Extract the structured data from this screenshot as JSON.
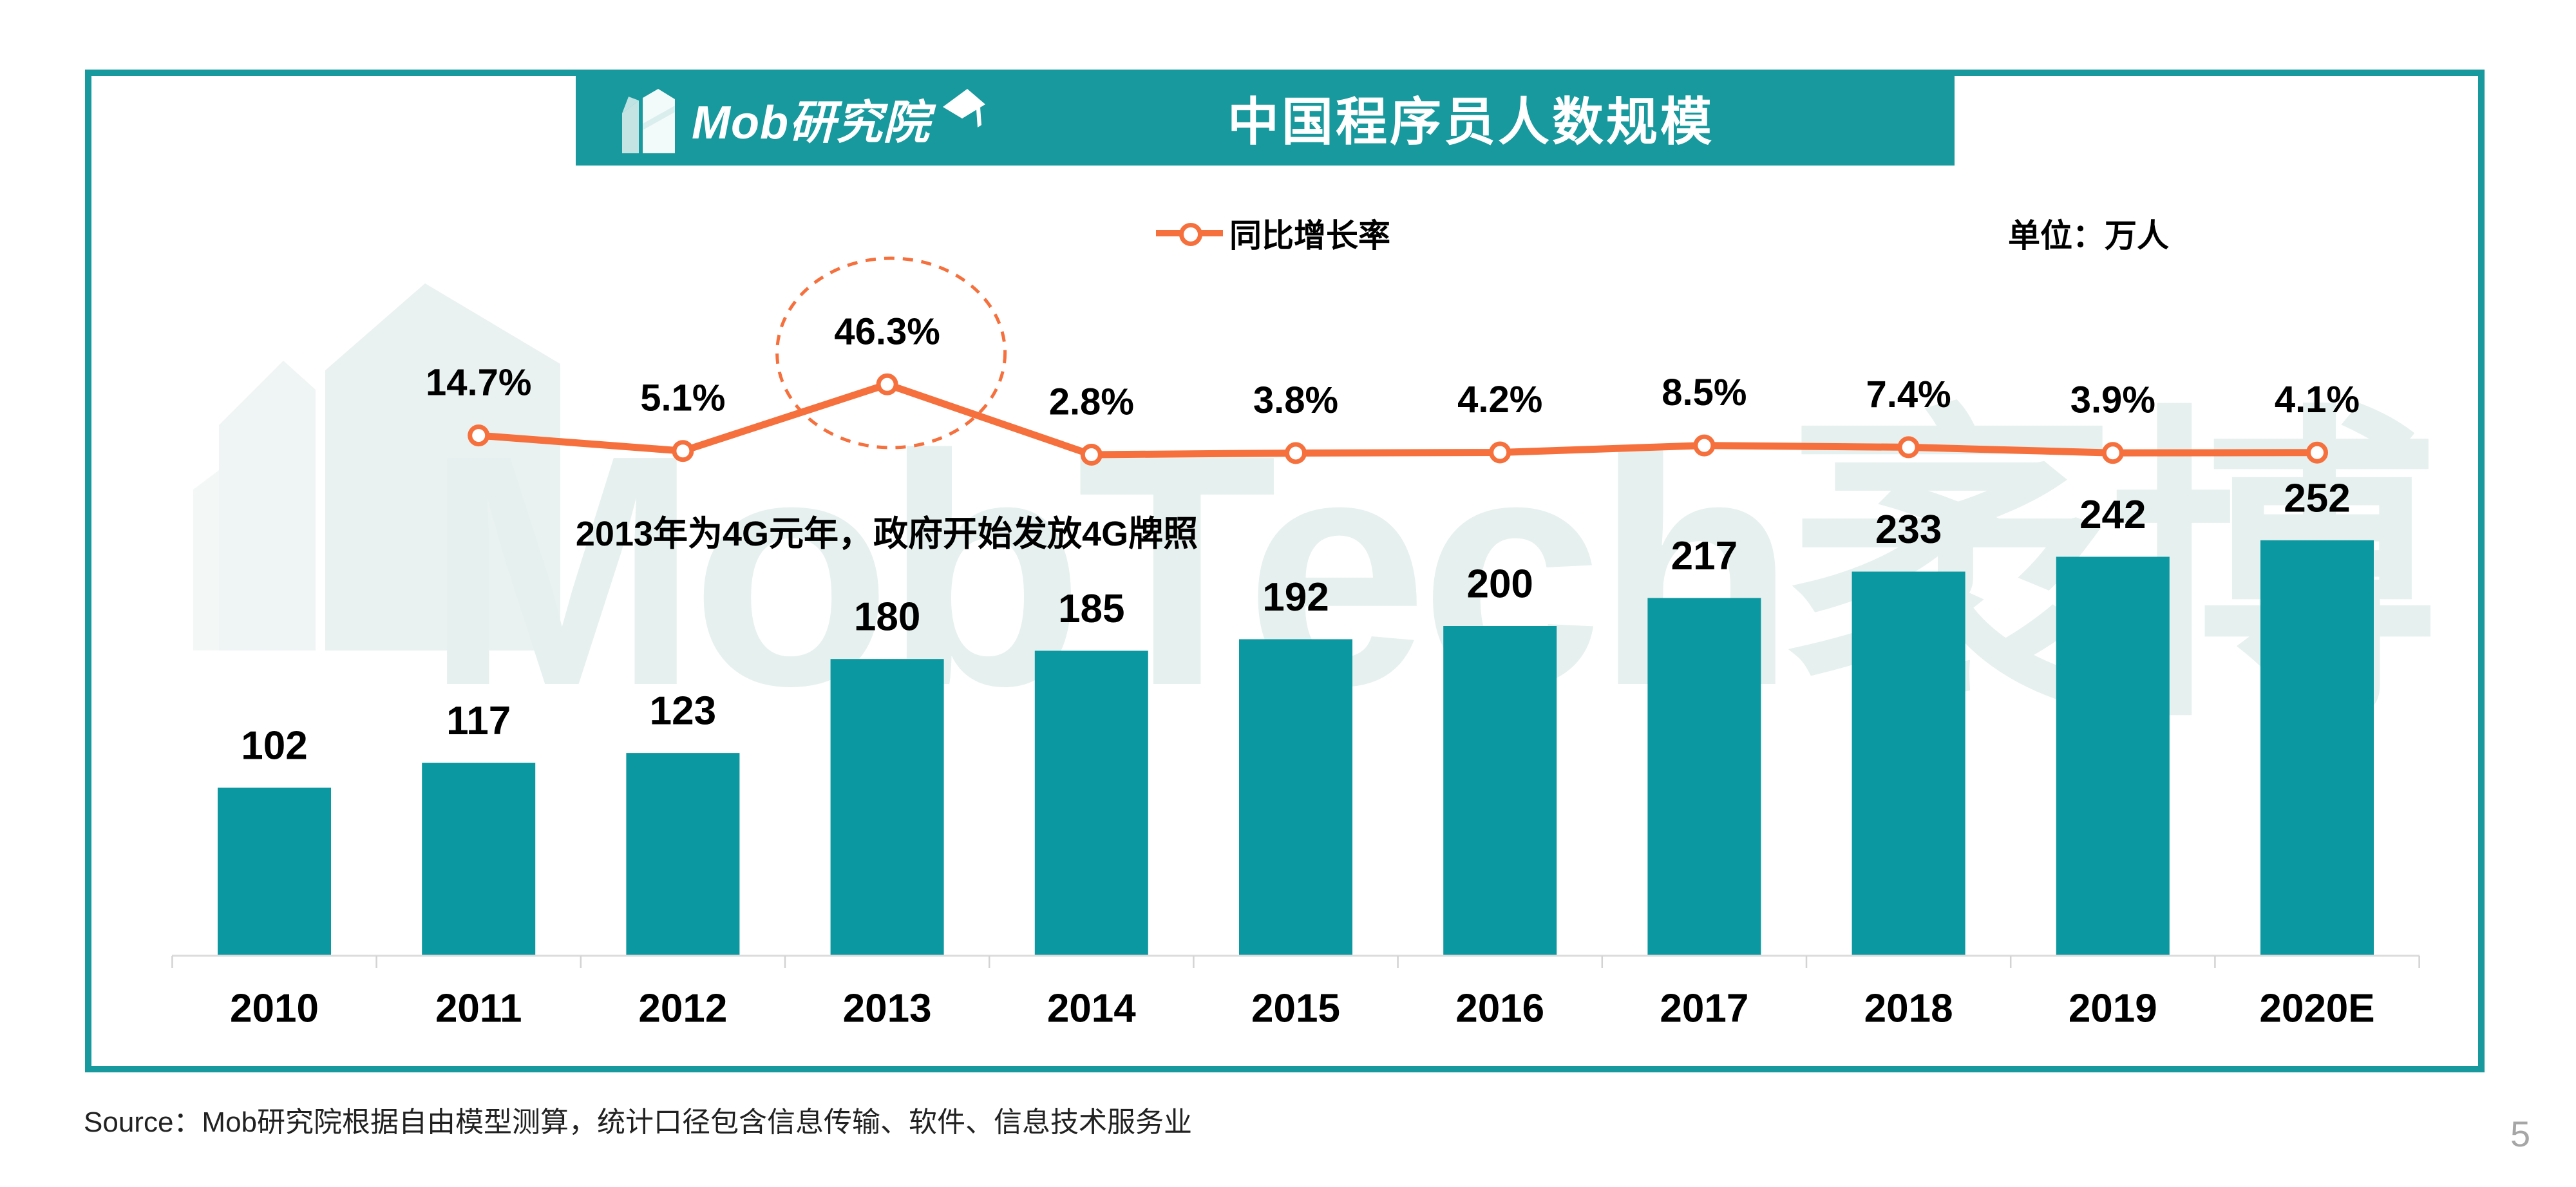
{
  "header": {
    "logo_text": "Mob研究院",
    "title": "中国程序员人数规模"
  },
  "legend": {
    "series_label": "同比增长率",
    "unit_label": "单位：万人"
  },
  "annotation": "2013年为4G元年，政府开始发放4G牌照",
  "source": "Source：Mob研究院根据自由模型测算，统计口径包含信息传输、软件、信息技术服务业",
  "page_number": "5",
  "watermark": {
    "text": "MobTech袤博"
  },
  "icons": {
    "logo_building": "building-icon",
    "logo_cap": "graduation-cap-icon",
    "legend_marker": "line-circle-marker-icon"
  },
  "colors": {
    "teal_bar": "#0C98A0",
    "teal_band": "#17999D",
    "orange": "#F5703C",
    "axis_gray": "#DCDCDC",
    "tick_gray": "#D3D3D3",
    "label_black": "#000000",
    "watermark": "#E6F0EF",
    "page_gray": "#A6A6A6"
  },
  "chart_data": {
    "type": "bar",
    "title": "中国程序员人数规模",
    "unit": "万人",
    "categories": [
      "2010",
      "2011",
      "2012",
      "2013",
      "2014",
      "2015",
      "2016",
      "2017",
      "2018",
      "2019",
      "2020E"
    ],
    "series": [
      {
        "name": "中国程序员人数规模（万人）",
        "type": "bar",
        "values": [
          102,
          117,
          123,
          180,
          185,
          192,
          200,
          217,
          233,
          242,
          252
        ]
      },
      {
        "name": "同比增长率",
        "type": "line",
        "values_pct": [
          null,
          14.7,
          5.1,
          46.3,
          2.8,
          3.8,
          4.2,
          8.5,
          7.4,
          3.9,
          4.1
        ],
        "labels": [
          "",
          "14.7%",
          "5.1%",
          "46.3%",
          "2.8%",
          "3.8%",
          "4.2%",
          "8.5%",
          "7.4%",
          "3.9%",
          "4.1%"
        ]
      }
    ],
    "highlight": {
      "category": "2013",
      "value": "46.3%"
    },
    "legend_position": "top",
    "grid": false
  }
}
